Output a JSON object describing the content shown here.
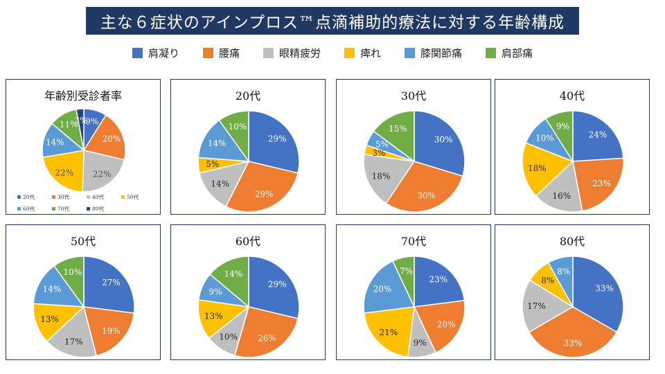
{
  "page_title": "主な６症状のアインプロス™点滴補助的療法に対する年齢構成",
  "colors": {
    "blue": "#4472c4",
    "orange": "#ed7d31",
    "gray": "#bfbfbf",
    "yellow": "#ffc000",
    "lightblue": "#5b9bd5",
    "green": "#70ad47",
    "navy": "#264478",
    "title_bg": "#1f3864"
  },
  "legend": [
    {
      "label": "肩凝り",
      "color": "#4472c4"
    },
    {
      "label": "腰痛",
      "color": "#ed7d31"
    },
    {
      "label": "眼精疲労",
      "color": "#bfbfbf"
    },
    {
      "label": "痺れ",
      "color": "#ffc000"
    },
    {
      "label": "膝関節痛",
      "color": "#5b9bd5"
    },
    {
      "label": "肩部痛",
      "color": "#70ad47"
    }
  ],
  "age_legend": [
    {
      "label": "20代",
      "color": "#4472c4"
    },
    {
      "label": "30代",
      "color": "#ed7d31"
    },
    {
      "label": "40代",
      "color": "#bfbfbf"
    },
    {
      "label": "50代",
      "color": "#ffc000"
    },
    {
      "label": "60代",
      "color": "#5b9bd5"
    },
    {
      "label": "70代",
      "color": "#70ad47"
    },
    {
      "label": "80代",
      "color": "#264478"
    }
  ],
  "chart_data": [
    {
      "type": "pie",
      "title": "年齢別受診者率",
      "categories": [
        "20代",
        "30代",
        "40代",
        "50代",
        "60代",
        "70代",
        "80代"
      ],
      "values": [
        9,
        20,
        22,
        22,
        14,
        11,
        3
      ],
      "labels": [
        "9%",
        "20%",
        "22%",
        "22%",
        "14%",
        "11%",
        "3%"
      ],
      "colors": [
        "#4472c4",
        "#ed7d31",
        "#bfbfbf",
        "#ffc000",
        "#5b9bd5",
        "#70ad47",
        "#264478"
      ]
    },
    {
      "type": "pie",
      "title": "20代",
      "categories": [
        "肩凝り",
        "腰痛",
        "眼精疲労",
        "痺れ",
        "膝関節痛",
        "肩部痛"
      ],
      "values": [
        29,
        29,
        14,
        5,
        14,
        10
      ],
      "labels": [
        "29%",
        "29%",
        "14%",
        "5%",
        "14%",
        "10%"
      ],
      "colors": [
        "#4472c4",
        "#ed7d31",
        "#bfbfbf",
        "#ffc000",
        "#5b9bd5",
        "#70ad47"
      ]
    },
    {
      "type": "pie",
      "title": "30代",
      "categories": [
        "肩凝り",
        "腰痛",
        "眼精疲労",
        "痺れ",
        "膝関節痛",
        "肩部痛"
      ],
      "values": [
        30,
        30,
        18,
        3,
        5,
        15
      ],
      "labels": [
        "30%",
        "30%",
        "18%",
        "3%",
        "5%",
        "15%"
      ],
      "colors": [
        "#4472c4",
        "#ed7d31",
        "#bfbfbf",
        "#ffc000",
        "#5b9bd5",
        "#70ad47"
      ]
    },
    {
      "type": "pie",
      "title": "40代",
      "categories": [
        "肩凝り",
        "腰痛",
        "眼精疲労",
        "痺れ",
        "膝関節痛",
        "肩部痛"
      ],
      "values": [
        24,
        23,
        16,
        18,
        10,
        9
      ],
      "labels": [
        "24%",
        "23%",
        "16%",
        "18%",
        "10%",
        "9%"
      ],
      "colors": [
        "#4472c4",
        "#ed7d31",
        "#bfbfbf",
        "#ffc000",
        "#5b9bd5",
        "#70ad47"
      ]
    },
    {
      "type": "pie",
      "title": "50代",
      "categories": [
        "肩凝り",
        "腰痛",
        "眼精疲労",
        "痺れ",
        "膝関節痛",
        "肩部痛"
      ],
      "values": [
        27,
        19,
        17,
        13,
        14,
        10
      ],
      "labels": [
        "27%",
        "19%",
        "17%",
        "13%",
        "14%",
        "10%"
      ],
      "colors": [
        "#4472c4",
        "#ed7d31",
        "#bfbfbf",
        "#ffc000",
        "#5b9bd5",
        "#70ad47"
      ]
    },
    {
      "type": "pie",
      "title": "60代",
      "categories": [
        "肩凝り",
        "腰痛",
        "眼精疲労",
        "痺れ",
        "膝関節痛",
        "肩部痛"
      ],
      "values": [
        29,
        26,
        10,
        13,
        9,
        14
      ],
      "labels": [
        "29%",
        "26%",
        "10%",
        "13%",
        "9%",
        "14%"
      ],
      "colors": [
        "#4472c4",
        "#ed7d31",
        "#bfbfbf",
        "#ffc000",
        "#5b9bd5",
        "#70ad47"
      ]
    },
    {
      "type": "pie",
      "title": "70代",
      "categories": [
        "肩凝り",
        "腰痛",
        "眼精疲労",
        "痺れ",
        "膝関節痛",
        "肩部痛"
      ],
      "values": [
        23,
        20,
        9,
        21,
        20,
        7
      ],
      "labels": [
        "23%",
        "20%",
        "9%",
        "21%",
        "20%",
        "7%"
      ],
      "colors": [
        "#4472c4",
        "#ed7d31",
        "#bfbfbf",
        "#ffc000",
        "#5b9bd5",
        "#70ad47"
      ]
    },
    {
      "type": "pie",
      "title": "80代",
      "categories": [
        "肩凝り",
        "腰痛",
        "眼精疲労",
        "痺れ",
        "膝関節痛",
        "肩部痛"
      ],
      "values": [
        33,
        33,
        17,
        8,
        8,
        0
      ],
      "labels": [
        "33%",
        "33%",
        "17%",
        "8%",
        "8%",
        ""
      ],
      "colors": [
        "#4472c4",
        "#ed7d31",
        "#bfbfbf",
        "#ffc000",
        "#5b9bd5",
        "#70ad47"
      ]
    }
  ]
}
